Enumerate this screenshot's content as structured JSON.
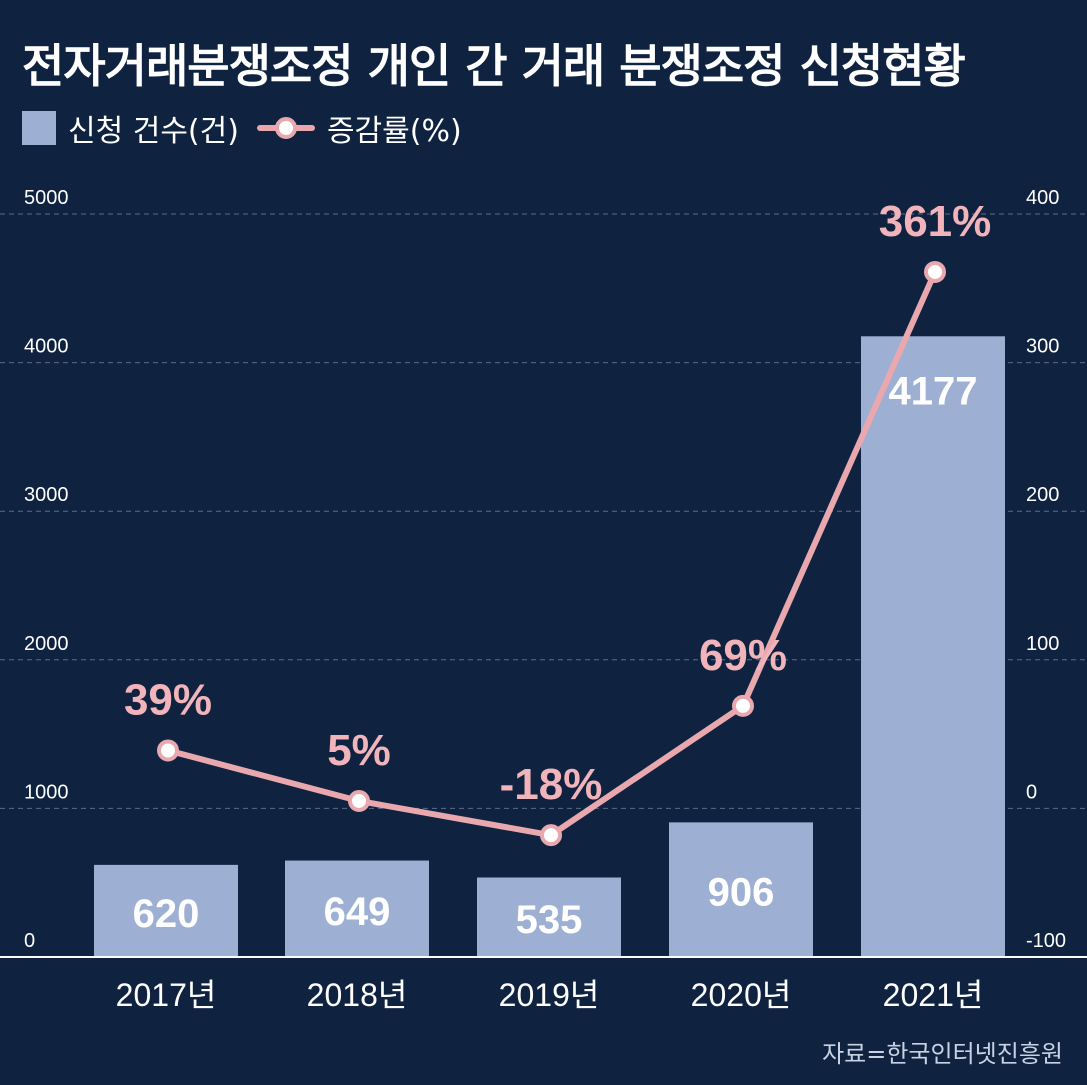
{
  "title": "전자거래분쟁조정 개인 간 거래 분쟁조정 신청현황",
  "legend": {
    "bars": "신청 건수(건)",
    "line": "증감률(%)"
  },
  "source": "자료=한국인터넷진흥원",
  "colors": {
    "background": "#0f2240",
    "bar": "#9db0d3",
    "line": "#e8a8ae",
    "pct_label": "#f1b4ba"
  },
  "chart_data": {
    "type": "bar",
    "categories": [
      "2017년",
      "2018년",
      "2019년",
      "2020년",
      "2021년"
    ],
    "series": [
      {
        "name": "신청 건수(건)",
        "type": "bar",
        "axis": "left",
        "values": [
          620,
          649,
          535,
          906,
          4177
        ]
      },
      {
        "name": "증감률(%)",
        "type": "line",
        "axis": "right",
        "values": [
          39,
          5,
          -18,
          69,
          361
        ]
      }
    ],
    "bar_labels": [
      "620",
      "649",
      "535",
      "906",
      "4177"
    ],
    "line_labels": [
      "39%",
      "5%",
      "-18%",
      "69%",
      "361%"
    ],
    "y_left": {
      "ylim": [
        0,
        5000
      ],
      "ticks": [
        0,
        1000,
        2000,
        3000,
        4000,
        5000
      ]
    },
    "y_right": {
      "ylim": [
        -100,
        400
      ],
      "ticks": [
        -100,
        0,
        100,
        200,
        300,
        400
      ]
    },
    "grid": true
  }
}
